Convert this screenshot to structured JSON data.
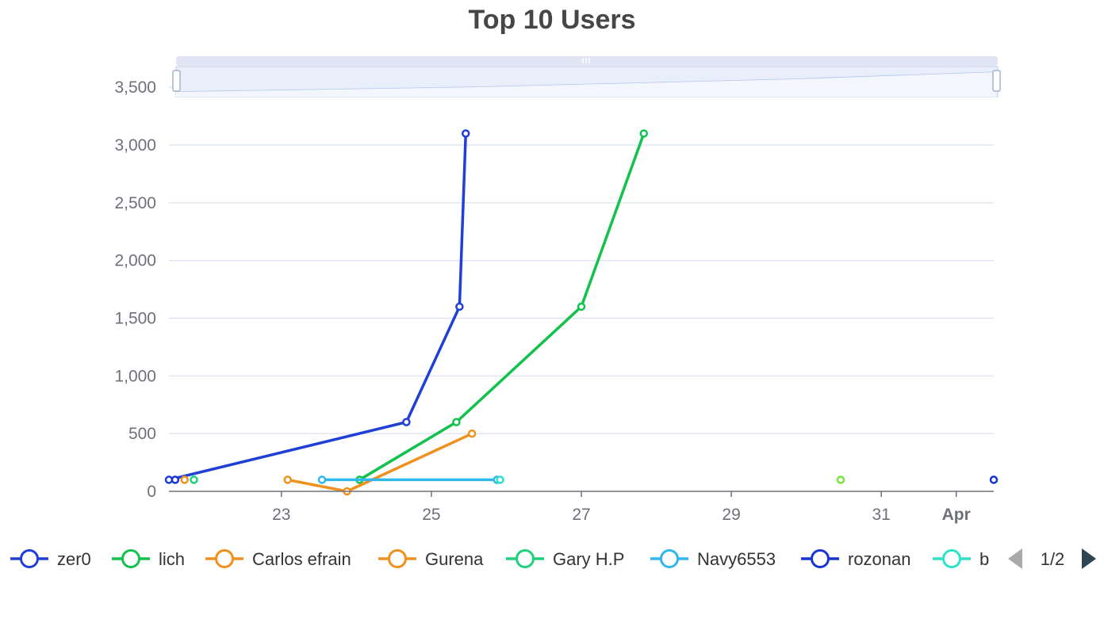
{
  "chart_data": {
    "type": "line",
    "title": "Top 10 Users",
    "xlabel": "",
    "ylabel": "",
    "x_axis": {
      "type": "time",
      "range": [
        "2023-03-21T12:00",
        "2023-04-01T12:00"
      ],
      "tick_labels": [
        "23",
        "25",
        "27",
        "29",
        "31",
        "Apr"
      ],
      "tick_dates": [
        "2023-03-23",
        "2023-03-25",
        "2023-03-27",
        "2023-03-29",
        "2023-03-31",
        "2023-04-01"
      ]
    },
    "y_axis": {
      "range": [
        0,
        3700
      ],
      "tick_labels": [
        "0",
        "500",
        "1,000",
        "1,500",
        "2,000",
        "2,500",
        "3,000",
        "3,500"
      ],
      "tick_values": [
        0,
        500,
        1000,
        1500,
        2000,
        2500,
        3000,
        3500
      ]
    },
    "grid": true,
    "legend_position": "bottom",
    "legend_page": "1/2",
    "data_zoom": {
      "visible": true,
      "position": "top"
    },
    "series": [
      {
        "name": "zer0",
        "color": "#1f3fd6",
        "points": [
          [
            "2023-03-21T12:00",
            100
          ],
          [
            "2023-03-24T16:00",
            600
          ],
          [
            "2023-03-25T09:00",
            1600
          ],
          [
            "2023-03-25T11:00",
            3100
          ]
        ]
      },
      {
        "name": "lich",
        "color": "#12c24c",
        "points": [
          [
            "2023-03-24T01:00",
            100
          ],
          [
            "2023-03-25T08:00",
            600
          ],
          [
            "2023-03-27T00:00",
            1600
          ],
          [
            "2023-03-27T20:00",
            3100
          ]
        ]
      },
      {
        "name": "Carlos efrain",
        "color": "#f0911e",
        "points": [
          [
            "2023-03-21T17:00",
            100
          ]
        ]
      },
      {
        "name": "Gurena",
        "color": "#f0911e",
        "points": [
          [
            "2023-03-23T02:00",
            100
          ],
          [
            "2023-03-23T21:00",
            0
          ],
          [
            "2023-03-25T13:00",
            500
          ]
        ]
      },
      {
        "name": "Gary H.P",
        "color": "#1ed17c",
        "points": [
          [
            "2023-03-21T20:00",
            100
          ]
        ]
      },
      {
        "name": "Navy6553",
        "color": "#30b8ec",
        "points": [
          [
            "2023-03-23T13:00",
            100
          ],
          [
            "2023-03-25T21:00",
            100
          ]
        ]
      },
      {
        "name": "rozonan",
        "color": "#1734d4",
        "points": [
          [
            "2023-04-01T12:00",
            100
          ]
        ]
      },
      {
        "name": "b",
        "color": "#2ae3c8",
        "points": [
          [
            "2023-03-25T22:00",
            100
          ]
        ]
      },
      {
        "color": "#1734d4",
        "points": [
          [
            "2023-03-21T14:00",
            100
          ]
        ]
      },
      {
        "color": "#7ae33a",
        "points": [
          [
            "2023-03-30T11:00",
            100
          ]
        ]
      }
    ]
  }
}
